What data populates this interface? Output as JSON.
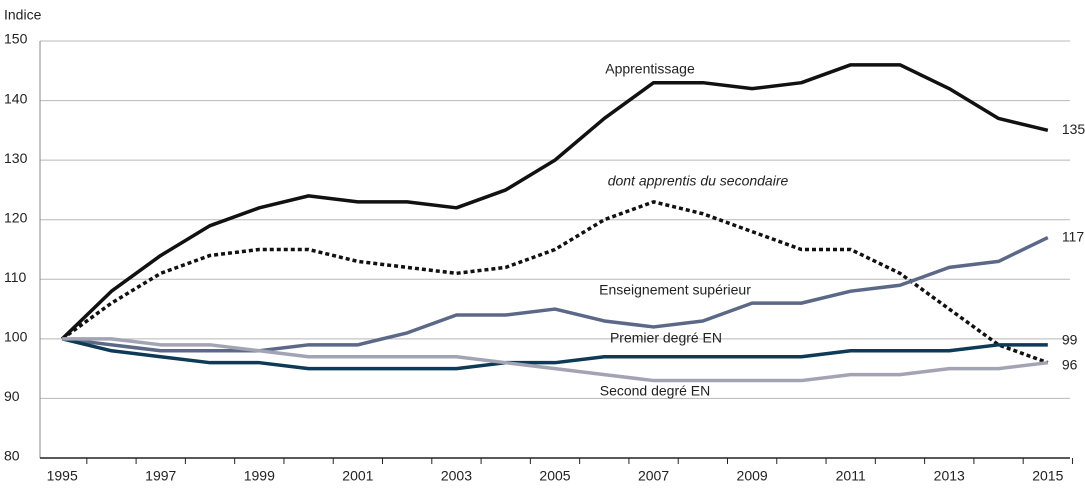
{
  "chart_data": {
    "type": "line",
    "y_label": "Indice",
    "x": [
      1995,
      1996,
      1997,
      1998,
      1999,
      2000,
      2001,
      2002,
      2003,
      2004,
      2005,
      2006,
      2007,
      2008,
      2009,
      2010,
      2011,
      2012,
      2013,
      2014,
      2015
    ],
    "xlim": [
      1994.55,
      2015.45
    ],
    "xticks": [
      1995,
      1997,
      1999,
      2001,
      2003,
      2005,
      2007,
      2009,
      2011,
      2013,
      2015
    ],
    "ylim": [
      80,
      150
    ],
    "yticks": [
      80,
      90,
      100,
      110,
      120,
      130,
      140,
      150
    ],
    "grid": true,
    "series": [
      {
        "name": "Apprentissage",
        "color": "#111111",
        "style": "solid",
        "values": [
          100,
          108,
          114,
          119,
          122,
          124,
          123,
          123,
          122,
          125,
          130,
          137,
          143,
          143,
          142,
          143,
          146,
          146,
          142,
          137,
          135
        ]
      },
      {
        "name": "dont apprentis du secondaire",
        "color": "#111111",
        "style": "dashed",
        "values": [
          100,
          106,
          111,
          114,
          115,
          115,
          113,
          112,
          111,
          112,
          115,
          120,
          123,
          121,
          118,
          115,
          115,
          111,
          105,
          99,
          96
        ]
      },
      {
        "name": "Enseignement supérieur",
        "color": "#5b6888",
        "style": "solid",
        "values": [
          100,
          99,
          98,
          98,
          98,
          99,
          99,
          101,
          104,
          104,
          105,
          103,
          102,
          103,
          106,
          106,
          108,
          109,
          112,
          113,
          117
        ]
      },
      {
        "name": "Premier degré EN",
        "color": "#0d3a56",
        "style": "solid",
        "values": [
          100,
          98,
          97,
          96,
          96,
          95,
          95,
          95,
          95,
          96,
          96,
          97,
          97,
          97,
          97,
          97,
          98,
          98,
          98,
          99,
          99
        ]
      },
      {
        "name": "Second degré EN",
        "color": "#a2a4b4",
        "style": "solid",
        "values": [
          100,
          100,
          99,
          99,
          98,
          97,
          97,
          97,
          97,
          96,
          95,
          94,
          93,
          93,
          93,
          93,
          94,
          94,
          95,
          95,
          96
        ]
      }
    ],
    "end_labels": [
      0,
      2,
      3,
      4
    ]
  }
}
